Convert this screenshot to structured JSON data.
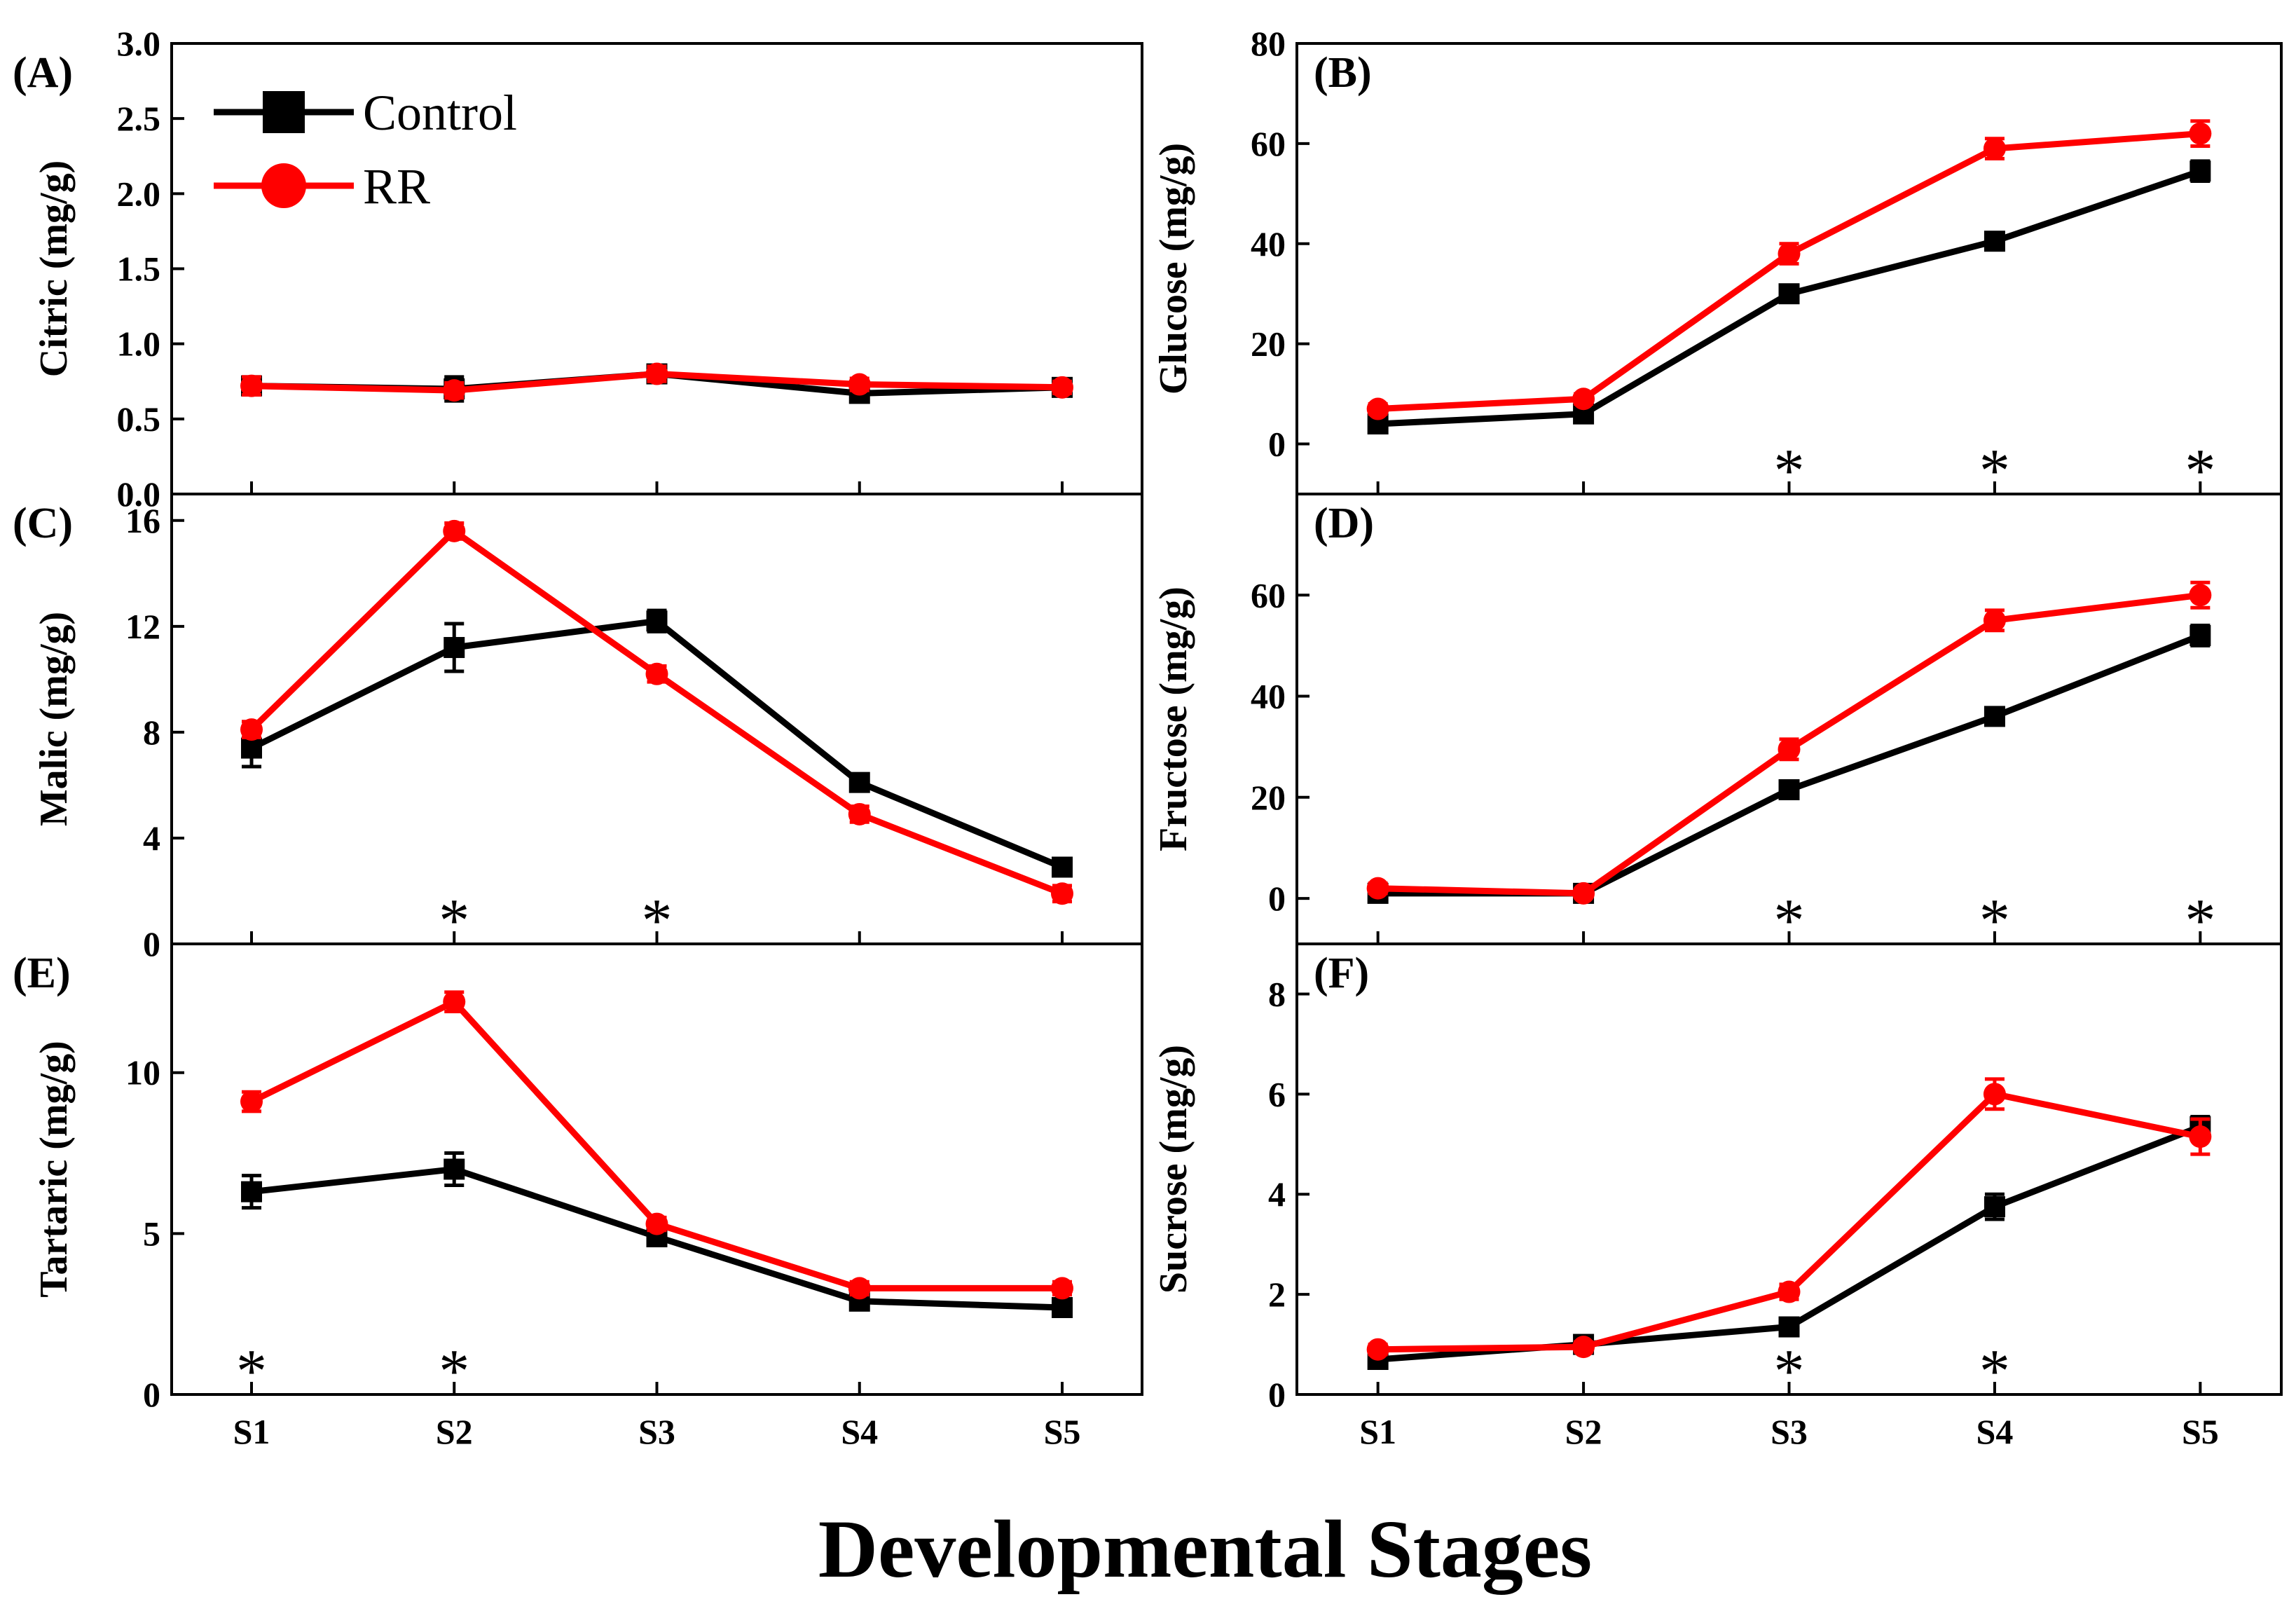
{
  "figure": {
    "xlabel": "Developmental Stages",
    "legend": [
      {
        "name": "Control",
        "color": "#000000",
        "marker": "square"
      },
      {
        "name": "RR",
        "color": "#ff0000",
        "marker": "circle"
      }
    ]
  },
  "chart_data": [
    {
      "panel": "(A)",
      "type": "line",
      "title": "",
      "ylabel": "Citric (mg/g)",
      "categories": [
        "S1",
        "S2",
        "S3",
        "S4",
        "S5"
      ],
      "ylim": [
        0,
        3.0
      ],
      "yticks": [
        "0.0",
        "0.5",
        "1.0",
        "1.5",
        "2.0",
        "2.5",
        "3.0"
      ],
      "show_x_ticklabels": false,
      "series": [
        {
          "name": "Control",
          "color": "#000000",
          "values": [
            0.72,
            0.7,
            0.8,
            0.67,
            0.71
          ],
          "errors": [
            0.06,
            0.08,
            0.05,
            0.04,
            0.04
          ]
        },
        {
          "name": "RR",
          "color": "#ff0000",
          "values": [
            0.72,
            0.69,
            0.8,
            0.73,
            0.71
          ],
          "errors": [
            0.06,
            0.05,
            0.05,
            0.04,
            0.04
          ]
        }
      ],
      "significant": []
    },
    {
      "panel": "(B)",
      "type": "line",
      "title": "",
      "ylabel": "Glucose (mg/g)",
      "categories": [
        "S1",
        "S2",
        "S3",
        "S4",
        "S5"
      ],
      "ylim": [
        -10,
        80
      ],
      "yticks": [
        "0",
        "20",
        "40",
        "60",
        "80"
      ],
      "show_x_ticklabels": false,
      "series": [
        {
          "name": "Control",
          "color": "#000000",
          "values": [
            4,
            6,
            30,
            40.5,
            54.5
          ],
          "errors": [
            1,
            1,
            1.5,
            1.5,
            2
          ]
        },
        {
          "name": "RR",
          "color": "#ff0000",
          "values": [
            7,
            9,
            38,
            59,
            62
          ],
          "errors": [
            1,
            1,
            2,
            2,
            2.5
          ]
        }
      ],
      "significant": [
        "S3",
        "S4",
        "S5"
      ]
    },
    {
      "panel": "(C)",
      "type": "line",
      "title": "",
      "ylabel": "Malic (mg/g)",
      "categories": [
        "S1",
        "S2",
        "S3",
        "S4",
        "S5"
      ],
      "ylim": [
        0,
        17
      ],
      "yticks": [
        "0",
        "4",
        "8",
        "12",
        "16"
      ],
      "show_x_ticklabels": false,
      "series": [
        {
          "name": "Control",
          "color": "#000000",
          "values": [
            7.4,
            11.2,
            12.2,
            6.1,
            2.9
          ],
          "errors": [
            0.7,
            0.9,
            0.4,
            0.3,
            0.2
          ]
        },
        {
          "name": "RR",
          "color": "#ff0000",
          "values": [
            8.1,
            15.6,
            10.2,
            4.9,
            1.9
          ],
          "errors": [
            0.3,
            0.3,
            0.3,
            0.3,
            0.3
          ]
        }
      ],
      "significant": [
        "S2",
        "S3"
      ]
    },
    {
      "panel": "(D)",
      "type": "line",
      "title": "",
      "ylabel": "Fructose (mg/g)",
      "categories": [
        "S1",
        "S2",
        "S3",
        "S4",
        "S5"
      ],
      "ylim": [
        -9,
        80
      ],
      "yticks": [
        "0",
        "20",
        "40",
        "60"
      ],
      "show_x_ticklabels": false,
      "series": [
        {
          "name": "Control",
          "color": "#000000",
          "values": [
            1,
            1,
            21.5,
            36,
            52
          ],
          "errors": [
            1,
            0.8,
            1.5,
            1.5,
            2
          ]
        },
        {
          "name": "RR",
          "color": "#ff0000",
          "values": [
            2,
            1,
            29.5,
            55,
            60
          ],
          "errors": [
            1,
            0.8,
            2,
            2,
            2.5
          ]
        }
      ],
      "significant": [
        "S3",
        "S4",
        "S5"
      ]
    },
    {
      "panel": "(E)",
      "type": "line",
      "title": "",
      "ylabel": "Tartaric (mg/g)",
      "categories": [
        "S1",
        "S2",
        "S3",
        "S4",
        "S5"
      ],
      "ylim": [
        0,
        14
      ],
      "yticks": [
        "0",
        "5",
        "10"
      ],
      "show_x_ticklabels": true,
      "series": [
        {
          "name": "Control",
          "color": "#000000",
          "values": [
            6.3,
            7.0,
            4.9,
            2.9,
            2.7
          ],
          "errors": [
            0.5,
            0.5,
            0.2,
            0.2,
            0.2
          ]
        },
        {
          "name": "RR",
          "color": "#ff0000",
          "values": [
            9.1,
            12.2,
            5.3,
            3.3,
            3.3
          ],
          "errors": [
            0.3,
            0.3,
            0.2,
            0.2,
            0.2
          ]
        }
      ],
      "significant": [
        "S1",
        "S2"
      ]
    },
    {
      "panel": "(F)",
      "type": "line",
      "title": "",
      "ylabel": "Sucrose (mg/g)",
      "categories": [
        "S1",
        "S2",
        "S3",
        "S4",
        "S5"
      ],
      "ylim": [
        0,
        9
      ],
      "yticks": [
        "0",
        "2",
        "4",
        "6",
        "8"
      ],
      "show_x_ticklabels": true,
      "series": [
        {
          "name": "Control",
          "color": "#000000",
          "values": [
            0.7,
            1.0,
            1.35,
            3.75,
            5.35
          ],
          "errors": [
            0.1,
            0.1,
            0.1,
            0.25,
            0.2
          ]
        },
        {
          "name": "RR",
          "color": "#ff0000",
          "values": [
            0.9,
            0.95,
            2.05,
            6.0,
            5.15
          ],
          "errors": [
            0.1,
            0.1,
            0.15,
            0.3,
            0.35
          ]
        }
      ],
      "significant": [
        "S3",
        "S4"
      ]
    }
  ]
}
